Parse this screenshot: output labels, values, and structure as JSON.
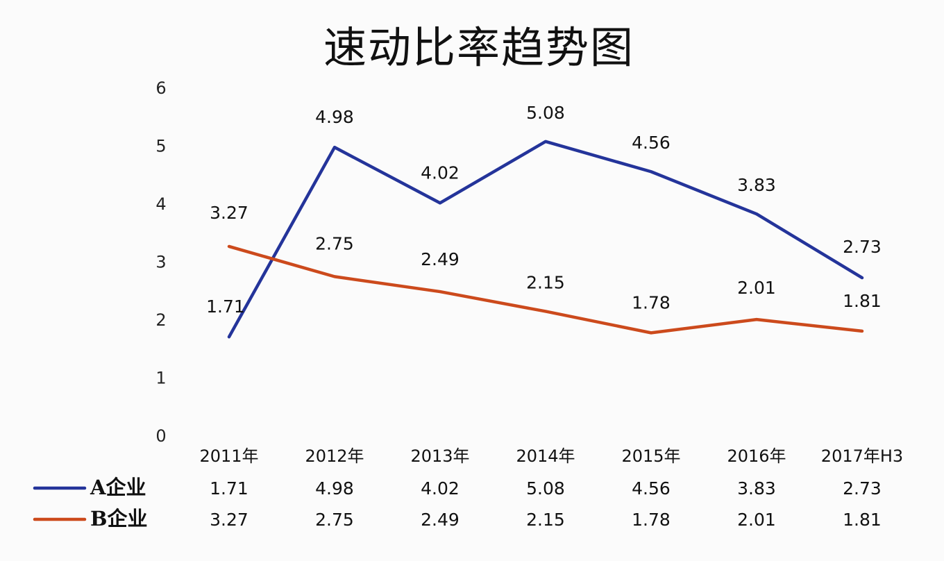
{
  "chart_data": {
    "type": "line",
    "title": "速动比率趋势图",
    "categories": [
      "2011年",
      "2012年",
      "2013年",
      "2014年",
      "2015年",
      "2016年",
      "2017年H3"
    ],
    "series": [
      {
        "name": "A企业",
        "color": "#24349a",
        "values": [
          1.71,
          4.98,
          4.02,
          5.08,
          4.56,
          3.83,
          2.73
        ]
      },
      {
        "name": "B企业",
        "color": "#cc4a1c",
        "values": [
          3.27,
          2.75,
          2.49,
          2.15,
          1.78,
          2.01,
          1.81
        ]
      }
    ],
    "yticks": [
      "0",
      "1",
      "2",
      "3",
      "4",
      "5",
      "6"
    ],
    "ylim": [
      0,
      6
    ],
    "grid": false,
    "legend": "data-table-below"
  }
}
